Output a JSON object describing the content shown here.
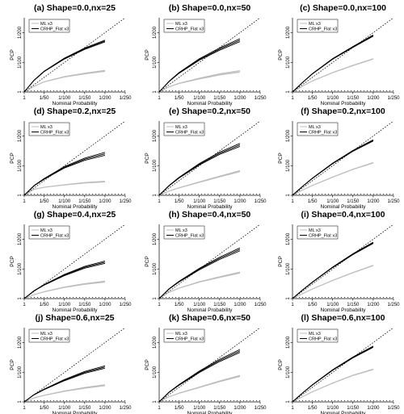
{
  "colors": {
    "ml": "#bdbdbd",
    "crhp": "#000000",
    "reference": "#000000"
  },
  "shared": {
    "xlabel": "Nominal Probability",
    "ylabel": "PCP",
    "xticklabels": [
      "1",
      "1/50",
      "1/100",
      "1/150",
      "1/200",
      "1/250"
    ],
    "yticklabels": [
      "1",
      "1/100",
      "1/200"
    ],
    "legend": [
      "ML x3",
      "CRHP_Flat x3"
    ],
    "legend_position": "top-left"
  },
  "chart_data": [
    {
      "type": "line",
      "title": "(a) Shape=0.0,nx=25",
      "xlim": [
        1,
        250
      ],
      "ylim": [
        1,
        250
      ],
      "reference": "y = x (dotted)",
      "series": [
        {
          "name": "ML x3",
          "x": [
            1,
            25,
            50,
            100,
            150,
            200
          ],
          "values": [
            1,
            20,
            35,
            52,
            63,
            72
          ],
          "spread": 2
        },
        {
          "name": "CRHP_Flat x3",
          "x": [
            1,
            25,
            50,
            100,
            150,
            200
          ],
          "values": [
            1,
            40,
            70,
            113,
            146,
            172
          ],
          "spread": 3
        }
      ]
    },
    {
      "type": "line",
      "title": "(b) Shape=0.0,nx=50",
      "xlim": [
        1,
        250
      ],
      "ylim": [
        1,
        250
      ],
      "reference": "y = x (dotted)",
      "series": [
        {
          "name": "ML x3",
          "x": [
            1,
            25,
            50,
            100,
            150,
            200
          ],
          "values": [
            1,
            18,
            30,
            46,
            60,
            70
          ],
          "spread": 3
        },
        {
          "name": "CRHP_Flat x3",
          "x": [
            1,
            25,
            50,
            100,
            150,
            200
          ],
          "values": [
            1,
            36,
            65,
            110,
            145,
            175
          ],
          "spread": 5
        }
      ]
    },
    {
      "type": "line",
      "title": "(c) Shape=0.0,nx=100",
      "xlim": [
        1,
        250
      ],
      "ylim": [
        1,
        250
      ],
      "reference": "y = x (dotted)",
      "series": [
        {
          "name": "ML x3",
          "x": [
            1,
            25,
            50,
            100,
            150,
            200
          ],
          "values": [
            1,
            20,
            38,
            66,
            90,
            112
          ],
          "spread": 1
        },
        {
          "name": "CRHP_Flat x3",
          "x": [
            1,
            25,
            50,
            100,
            150,
            200
          ],
          "values": [
            1,
            32,
            62,
            112,
            152,
            190
          ],
          "spread": 2
        }
      ]
    },
    {
      "type": "line",
      "title": "(d) Shape=0.2,nx=25",
      "xlim": [
        1,
        250
      ],
      "ylim": [
        1,
        250
      ],
      "reference": "y = x (dotted)",
      "series": [
        {
          "name": "ML x3",
          "x": [
            1,
            25,
            50,
            100,
            150,
            200
          ],
          "values": [
            1,
            21,
            28,
            36,
            43,
            47
          ],
          "spread": 1.5
        },
        {
          "name": "CRHP_Flat x3",
          "x": [
            1,
            25,
            50,
            100,
            150,
            200
          ],
          "values": [
            1,
            33,
            56,
            95,
            122,
            140
          ],
          "spread": 5
        }
      ]
    },
    {
      "type": "line",
      "title": "(e) Shape=0.2,nx=50",
      "xlim": [
        1,
        250
      ],
      "ylim": [
        1,
        250
      ],
      "reference": "y = x (dotted)",
      "series": [
        {
          "name": "ML x3",
          "x": [
            1,
            25,
            50,
            100,
            150,
            200
          ],
          "values": [
            1,
            15,
            26,
            45,
            64,
            82
          ],
          "spread": 2
        },
        {
          "name": "CRHP_Flat x3",
          "x": [
            1,
            25,
            50,
            100,
            150,
            200
          ],
          "values": [
            1,
            33,
            60,
            105,
            142,
            170
          ],
          "spread": 5
        }
      ]
    },
    {
      "type": "line",
      "title": "(f) Shape=0.2,nx=100",
      "xlim": [
        1,
        250
      ],
      "ylim": [
        1,
        250
      ],
      "reference": "y = x (dotted)",
      "series": [
        {
          "name": "ML x3",
          "x": [
            1,
            25,
            50,
            100,
            150,
            200
          ],
          "values": [
            1,
            18,
            34,
            62,
            88,
            110
          ],
          "spread": 1
        },
        {
          "name": "CRHP_Flat x3",
          "x": [
            1,
            25,
            50,
            100,
            150,
            200
          ],
          "values": [
            1,
            30,
            58,
            108,
            150,
            185
          ],
          "spread": 2
        }
      ]
    },
    {
      "type": "line",
      "title": "(g) Shape=0.4,nx=25",
      "xlim": [
        1,
        250
      ],
      "ylim": [
        1,
        250
      ],
      "reference": "y = x (dotted)",
      "series": [
        {
          "name": "ML x3",
          "x": [
            1,
            25,
            50,
            100,
            150,
            200
          ],
          "values": [
            1,
            14,
            24,
            39,
            50,
            58
          ],
          "spread": 2
        },
        {
          "name": "CRHP_Flat x3",
          "x": [
            1,
            25,
            50,
            100,
            150,
            200
          ],
          "values": [
            1,
            27,
            47,
            80,
            106,
            123
          ],
          "spread": 4
        }
      ]
    },
    {
      "type": "line",
      "title": "(h) Shape=0.4,nx=50",
      "xlim": [
        1,
        250
      ],
      "ylim": [
        1,
        250
      ],
      "reference": "y = x (dotted)",
      "series": [
        {
          "name": "ML x3",
          "x": [
            1,
            25,
            50,
            100,
            150,
            200
          ],
          "values": [
            1,
            22,
            36,
            57,
            73,
            88
          ],
          "spread": 2
        },
        {
          "name": "CRHP_Flat x3",
          "x": [
            1,
            25,
            50,
            100,
            150,
            200
          ],
          "values": [
            1,
            33,
            58,
            100,
            136,
            166
          ],
          "spread": 5
        }
      ]
    },
    {
      "type": "line",
      "title": "(i) Shape=0.4,nx=100",
      "xlim": [
        1,
        250
      ],
      "ylim": [
        1,
        250
      ],
      "reference": "y = x (dotted)",
      "series": [
        {
          "name": "ML x3",
          "x": [
            1,
            25,
            50,
            100,
            150,
            200
          ],
          "values": [
            1,
            17,
            33,
            62,
            88,
            112
          ],
          "spread": 1
        },
        {
          "name": "CRHP_Flat x3",
          "x": [
            1,
            25,
            50,
            100,
            150,
            200
          ],
          "values": [
            1,
            29,
            56,
            106,
            150,
            188
          ],
          "spread": 2
        }
      ]
    },
    {
      "type": "line",
      "title": "(j) Shape=0.6,nx=25",
      "xlim": [
        1,
        250
      ],
      "ylim": [
        1,
        250
      ],
      "reference": "y = x (dotted)",
      "series": [
        {
          "name": "ML x3",
          "x": [
            1,
            25,
            50,
            100,
            150,
            200
          ],
          "values": [
            1,
            14,
            23,
            37,
            48,
            57
          ],
          "spread": 2
        },
        {
          "name": "CRHP_Flat x3",
          "x": [
            1,
            25,
            50,
            100,
            150,
            200
          ],
          "values": [
            1,
            25,
            43,
            74,
            100,
            118
          ],
          "spread": 4
        }
      ]
    },
    {
      "type": "line",
      "title": "(k) Shape=0.6,nx=50",
      "xlim": [
        1,
        250
      ],
      "ylim": [
        1,
        250
      ],
      "reference": "y = x (dotted)",
      "series": [
        {
          "name": "ML x3",
          "x": [
            1,
            25,
            50,
            100,
            150,
            200
          ],
          "values": [
            1,
            18,
            30,
            50,
            70,
            88
          ],
          "spread": 2
        },
        {
          "name": "CRHP_Flat x3",
          "x": [
            1,
            25,
            50,
            100,
            150,
            200
          ],
          "values": [
            1,
            33,
            58,
            102,
            140,
            172
          ],
          "spread": 5
        }
      ]
    },
    {
      "type": "line",
      "title": "(l) Shape=0.6,nx=100",
      "xlim": [
        1,
        250
      ],
      "ylim": [
        1,
        250
      ],
      "reference": "y = x (dotted)",
      "series": [
        {
          "name": "ML x3",
          "x": [
            1,
            25,
            50,
            100,
            150,
            200
          ],
          "values": [
            1,
            18,
            35,
            64,
            90,
            110
          ],
          "spread": 1
        },
        {
          "name": "CRHP_Flat x3",
          "x": [
            1,
            25,
            50,
            100,
            150,
            200
          ],
          "values": [
            1,
            30,
            58,
            108,
            150,
            186
          ],
          "spread": 2
        }
      ]
    }
  ]
}
